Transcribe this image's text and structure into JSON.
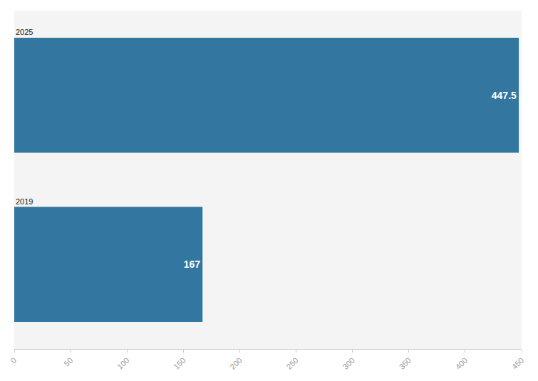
{
  "chart_data": {
    "type": "bar",
    "orientation": "horizontal",
    "categories": [
      "2025",
      "2019"
    ],
    "values": [
      447.5,
      167
    ],
    "color": "#33769f",
    "xlim": [
      0,
      450
    ],
    "xticks": [
      0,
      50,
      100,
      150,
      200,
      250,
      300,
      350,
      400,
      450
    ],
    "grid": false,
    "data_labels": true
  }
}
